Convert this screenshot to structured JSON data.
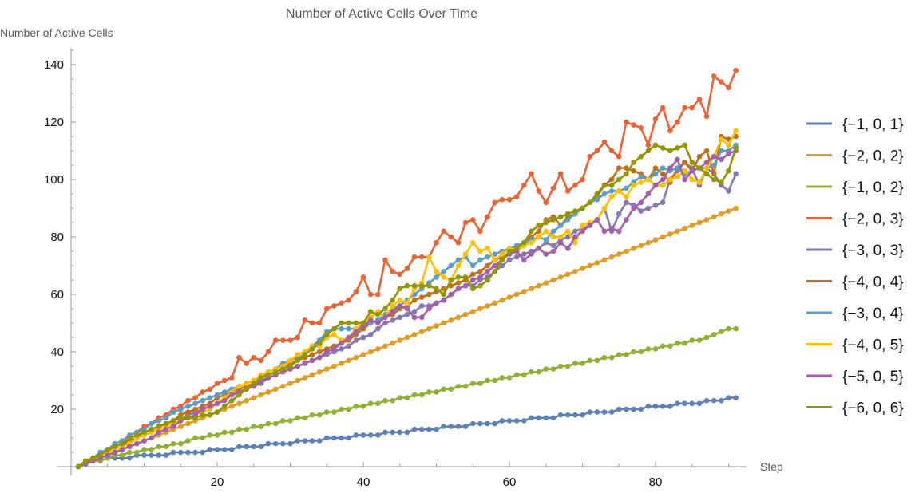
{
  "chart_data": {
    "type": "line",
    "title": "Number of Active Cells Over Time",
    "xlabel": "Step",
    "ylabel": "Number of Active Cells",
    "xlim": [
      0,
      92
    ],
    "ylim": [
      0,
      145
    ],
    "xticks": [
      20,
      40,
      60,
      80
    ],
    "yticks": [
      20,
      40,
      60,
      80,
      100,
      120,
      140
    ],
    "xtick_labels": [
      "20",
      "40",
      "60",
      "80"
    ],
    "ytick_labels": [
      "20",
      "40",
      "60",
      "80",
      "100",
      "120",
      "140"
    ],
    "legend_position": "right",
    "x_start": 1,
    "series": [
      {
        "name": "{−1, 0, 1}",
        "color": "#5E81B5",
        "values": [
          0,
          1,
          2,
          2,
          3,
          3,
          3,
          3,
          4,
          4,
          4,
          4,
          4,
          5,
          5,
          5,
          5,
          5,
          6,
          6,
          6,
          6,
          7,
          7,
          7,
          7,
          8,
          8,
          8,
          8,
          9,
          9,
          9,
          9,
          10,
          10,
          10,
          10,
          11,
          11,
          11,
          11,
          12,
          12,
          12,
          12,
          13,
          13,
          13,
          13,
          14,
          14,
          14,
          14,
          15,
          15,
          15,
          15,
          16,
          16,
          16,
          16,
          17,
          17,
          17,
          17,
          18,
          18,
          18,
          18,
          19,
          19,
          19,
          19,
          20,
          20,
          20,
          20,
          21,
          21,
          21,
          21,
          22,
          22,
          22,
          22,
          23,
          23,
          23,
          24,
          24
        ]
      },
      {
        "name": "{−2, 0, 2}",
        "color": "#E19C24",
        "values": [
          0,
          1,
          2,
          3,
          4,
          5,
          6,
          7,
          8,
          9,
          10,
          11,
          12,
          13,
          14,
          15,
          16,
          17,
          18,
          19,
          20,
          21,
          22,
          23,
          24,
          25,
          26,
          27,
          28,
          29,
          30,
          31,
          32,
          33,
          34,
          35,
          36,
          37,
          38,
          39,
          40,
          41,
          42,
          43,
          44,
          45,
          46,
          47,
          48,
          49,
          50,
          51,
          52,
          53,
          54,
          55,
          56,
          57,
          58,
          59,
          60,
          61,
          62,
          63,
          64,
          65,
          66,
          67,
          68,
          69,
          70,
          71,
          72,
          73,
          74,
          75,
          76,
          77,
          78,
          79,
          80,
          81,
          82,
          83,
          84,
          85,
          86,
          87,
          88,
          89,
          90
        ]
      },
      {
        "name": "{−1, 0, 2}",
        "color": "#8FB032",
        "values": [
          0,
          1,
          2,
          2,
          3,
          4,
          4,
          5,
          5,
          6,
          6,
          7,
          7,
          8,
          8,
          9,
          10,
          10,
          11,
          11,
          12,
          12,
          13,
          13,
          14,
          14,
          15,
          15,
          16,
          16,
          17,
          17,
          18,
          18,
          19,
          19,
          20,
          20,
          21,
          21,
          22,
          22,
          23,
          23,
          24,
          24,
          25,
          25,
          26,
          26,
          27,
          27,
          28,
          28,
          29,
          29,
          30,
          30,
          31,
          31,
          32,
          32,
          33,
          33,
          34,
          34,
          35,
          35,
          36,
          36,
          37,
          37,
          38,
          38,
          39,
          39,
          40,
          40,
          41,
          41,
          42,
          42,
          43,
          43,
          44,
          44,
          45,
          46,
          47,
          48,
          48
        ]
      },
      {
        "name": "{−2, 0, 3}",
        "color": "#EB6235",
        "values": [
          0,
          2,
          3,
          5,
          6,
          8,
          9,
          11,
          12,
          14,
          15,
          17,
          18,
          20,
          21,
          23,
          24,
          26,
          27,
          29,
          30,
          31,
          38,
          36,
          38,
          37,
          40,
          44,
          44,
          44,
          45,
          51,
          50,
          50,
          55,
          56,
          57,
          58,
          61,
          66,
          60,
          60,
          72,
          68,
          67,
          69,
          73,
          73,
          73,
          78,
          82,
          80,
          78,
          85,
          86,
          82,
          87,
          92,
          93,
          93,
          94,
          98,
          102,
          96,
          92,
          97,
          102,
          96,
          98,
          100,
          108,
          110,
          113,
          110,
          108,
          120,
          119,
          118,
          112,
          121,
          125,
          117,
          120,
          125,
          125,
          128,
          122,
          136,
          134,
          132,
          138
        ]
      },
      {
        "name": "{−3, 0, 3}",
        "color": "#8778B3",
        "values": [
          0,
          1,
          3,
          4,
          5,
          6,
          7,
          9,
          10,
          11,
          12,
          13,
          14,
          15,
          16,
          18,
          19,
          20,
          21,
          22,
          24,
          25,
          26,
          27,
          28,
          29,
          31,
          32,
          33,
          34,
          35,
          36,
          37,
          38,
          39,
          40,
          41,
          42,
          44,
          45,
          46,
          48,
          50,
          51,
          52,
          53,
          54,
          56,
          56,
          57,
          58,
          60,
          62,
          63,
          63,
          65,
          66,
          68,
          70,
          72,
          73,
          74,
          75,
          76,
          78,
          77,
          79,
          80,
          82,
          83,
          84,
          86,
          90,
          82,
          88,
          92,
          91,
          89,
          90,
          91,
          92,
          100,
          103,
          106,
          104,
          98,
          104,
          102,
          98,
          96,
          102
        ]
      },
      {
        "name": "{−4, 0, 4}",
        "color": "#C56E1A",
        "values": [
          0,
          1,
          3,
          4,
          5,
          7,
          8,
          9,
          10,
          12,
          13,
          14,
          15,
          16,
          18,
          19,
          20,
          21,
          22,
          24,
          25,
          26,
          27,
          28,
          29,
          31,
          32,
          33,
          34,
          36,
          37,
          38,
          39,
          40,
          41,
          42,
          43,
          44,
          46,
          48,
          50,
          51,
          52,
          53,
          55,
          56,
          58,
          59,
          60,
          61,
          62,
          63,
          64,
          65,
          67,
          68,
          70,
          72,
          73,
          74,
          76,
          78,
          80,
          82,
          86,
          87,
          84,
          87,
          88,
          90,
          92,
          94,
          98,
          100,
          104,
          104,
          103,
          102,
          100,
          104,
          102,
          99,
          104,
          106,
          103,
          108,
          110,
          102,
          115,
          114,
          115
        ]
      },
      {
        "name": "{−3, 0, 4}",
        "color": "#5D9EC7",
        "values": [
          0,
          2,
          3,
          5,
          6,
          8,
          9,
          11,
          12,
          13,
          15,
          16,
          17,
          19,
          20,
          21,
          22,
          23,
          24,
          25,
          26,
          27,
          28,
          29,
          30,
          31,
          33,
          34,
          36,
          37,
          38,
          39,
          42,
          44,
          47,
          48,
          48,
          48,
          48,
          49,
          50,
          51,
          53,
          55,
          56,
          58,
          60,
          62,
          64,
          66,
          68,
          70,
          72,
          73,
          70,
          72,
          73,
          74,
          75,
          76,
          77,
          78,
          79,
          80,
          79,
          82,
          84,
          86,
          88,
          90,
          92,
          93,
          95,
          96,
          96,
          97,
          99,
          101,
          100,
          102,
          104,
          103,
          104,
          102,
          103,
          104,
          104,
          105,
          110,
          110,
          112
        ]
      },
      {
        "name": "{−4, 0, 5}",
        "color": "#FFBF00",
        "values": [
          0,
          1,
          2,
          4,
          5,
          6,
          7,
          8,
          10,
          11,
          12,
          13,
          14,
          15,
          16,
          17,
          18,
          19,
          20,
          22,
          24,
          26,
          28,
          29,
          30,
          32,
          33,
          34,
          35,
          37,
          39,
          40,
          42,
          42,
          45,
          46,
          44,
          45,
          48,
          50,
          52,
          54,
          52,
          56,
          58,
          57,
          62,
          64,
          73,
          68,
          66,
          65,
          70,
          74,
          78,
          75,
          76,
          72,
          74,
          76,
          75,
          77,
          78,
          80,
          82,
          80,
          80,
          82,
          78,
          84,
          85,
          86,
          90,
          94,
          96,
          94,
          98,
          99,
          100,
          98,
          98,
          100,
          101,
          103,
          100,
          99,
          104,
          108,
          114,
          112,
          117
        ]
      },
      {
        "name": "{−5, 0, 5}",
        "color": "#A55FAA",
        "values": [
          0,
          1,
          2,
          3,
          4,
          5,
          6,
          7,
          8,
          9,
          10,
          12,
          13,
          14,
          16,
          17,
          18,
          20,
          21,
          22,
          23,
          25,
          26,
          27,
          28,
          30,
          31,
          32,
          33,
          34,
          35,
          36,
          37,
          38,
          40,
          41,
          43,
          45,
          47,
          49,
          51,
          50,
          52,
          54,
          56,
          55,
          52,
          52,
          55,
          57,
          58,
          60,
          62,
          63,
          65,
          66,
          68,
          70,
          72,
          74,
          75,
          72,
          74,
          76,
          74,
          75,
          78,
          76,
          80,
          82,
          84,
          86,
          82,
          83,
          82,
          86,
          90,
          92,
          95,
          98,
          100,
          104,
          107,
          100,
          103,
          104,
          106,
          108,
          107,
          109,
          110
        ]
      },
      {
        "name": "{−6, 0, 6}",
        "color": "#929600",
        "values": [
          0,
          2,
          3,
          4,
          6,
          7,
          8,
          10,
          11,
          12,
          13,
          14,
          15,
          16,
          17,
          17,
          17,
          18,
          18,
          19,
          21,
          23,
          25,
          27,
          29,
          31,
          32,
          33,
          34,
          35,
          37,
          39,
          41,
          43,
          46,
          48,
          50,
          50,
          50,
          50,
          54,
          53,
          55,
          58,
          62,
          63,
          63,
          63,
          63,
          62,
          60,
          65,
          66,
          66,
          62,
          63,
          65,
          68,
          72,
          75,
          76,
          78,
          82,
          84,
          85,
          86,
          87,
          88,
          89,
          90,
          92,
          95,
          98,
          98,
          100,
          102,
          106,
          108,
          110,
          112,
          111,
          110,
          111,
          112,
          106,
          104,
          102,
          100,
          99,
          103,
          111
        ]
      }
    ]
  }
}
